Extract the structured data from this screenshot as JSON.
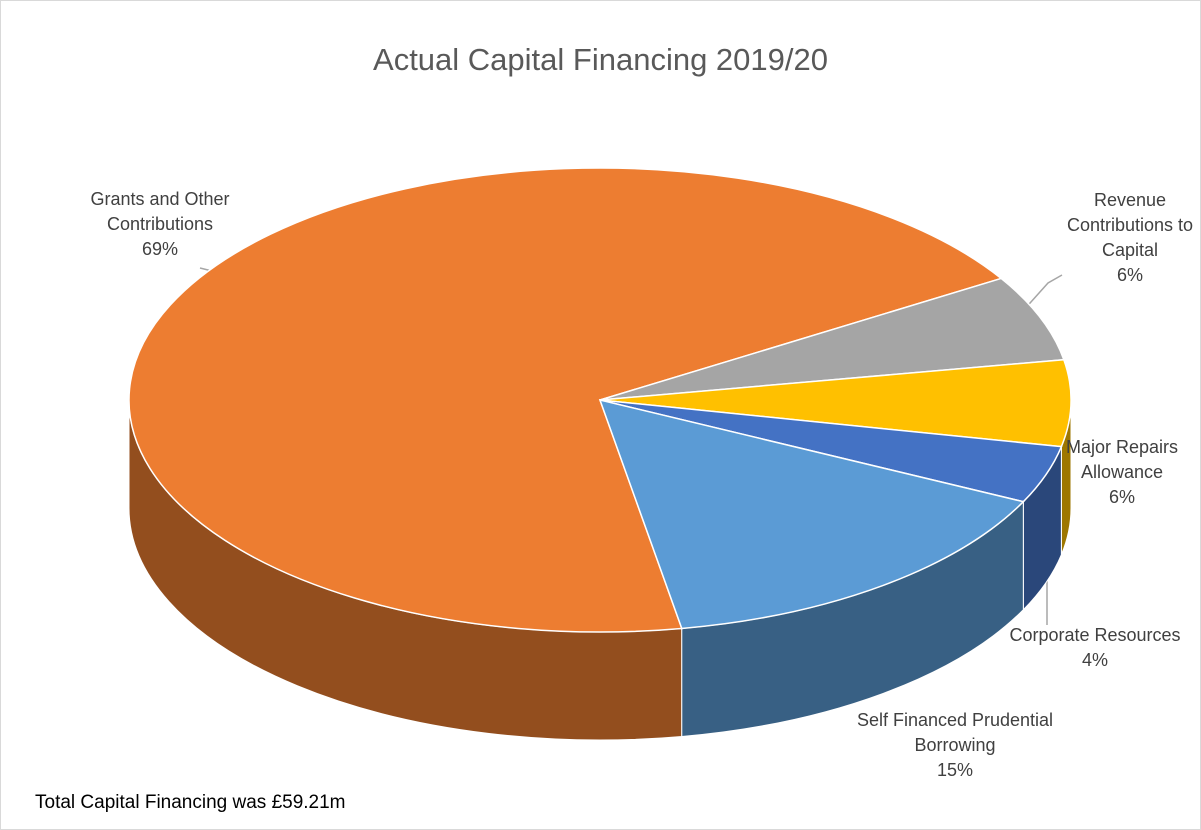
{
  "chart_data": {
    "type": "pie",
    "title": "Actual Capital Financing 2019/20",
    "categories": [
      "Grants and Other Contributions",
      "Revenue Contributions to Capital",
      "Major Repairs Allowance",
      "Corporate Resources",
      "Self Financed Prudential Borrowing"
    ],
    "values": [
      69,
      6,
      6,
      4,
      15
    ],
    "value_labels": [
      "69%",
      "6%",
      "6%",
      "4%",
      "15%"
    ],
    "colors": [
      "#ed7d31",
      "#a5a5a5",
      "#ffc000",
      "#4472c4",
      "#5b9bd5"
    ],
    "note": "Total Capital Financing was £59.21m"
  }
}
